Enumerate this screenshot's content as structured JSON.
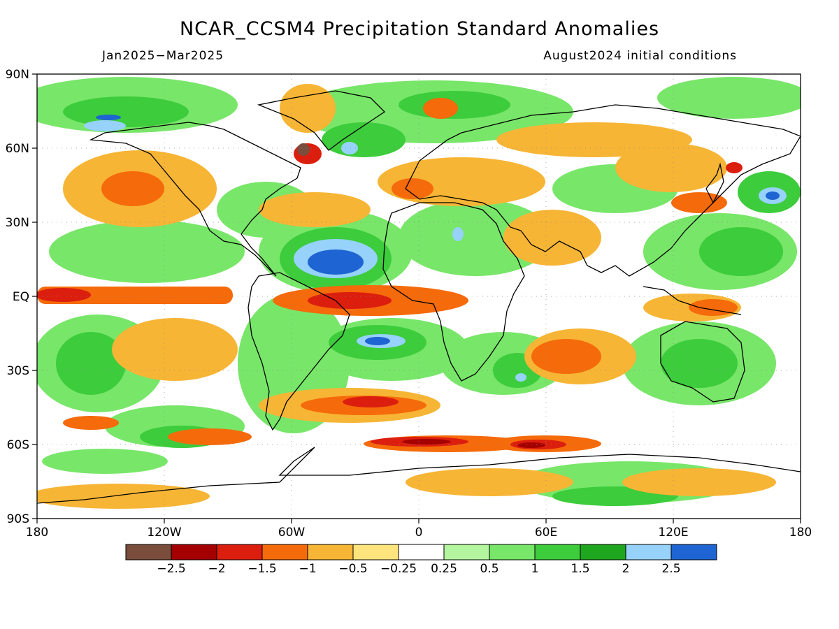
{
  "title": "NCAR_CCSM4 Precipitation Standard Anomalies",
  "subtitle_left": "Jan2025−Mar2025",
  "subtitle_right": "August2024 initial conditions",
  "axes": {
    "lat_labels": [
      "90N",
      "60N",
      "30N",
      "EQ",
      "30S",
      "60S",
      "90S"
    ],
    "lon_labels": [
      "180",
      "120W",
      "60W",
      "0",
      "60E",
      "120E",
      "180"
    ]
  },
  "colorbar": {
    "colors": [
      "#7a4d3c",
      "#a50000",
      "#dc1e0e",
      "#f56a0a",
      "#f7b535",
      "#fde47d",
      "#ffffff",
      "#b4f5a0",
      "#78e669",
      "#3ccc3c",
      "#1ea61e",
      "#96d2fa",
      "#1e64d2"
    ],
    "labels": [
      "−2.5",
      "−2",
      "−1.5",
      "−1",
      "−0.5",
      "−0.25",
      "0.25",
      "0.5",
      "1",
      "1.5",
      "2",
      "2.5"
    ]
  },
  "map_data": {
    "type": "precipitation_standard_anomaly",
    "lon_range": [
      -180,
      180
    ],
    "lat_range": [
      -90,
      90
    ],
    "grid_lines": "dotted"
  }
}
